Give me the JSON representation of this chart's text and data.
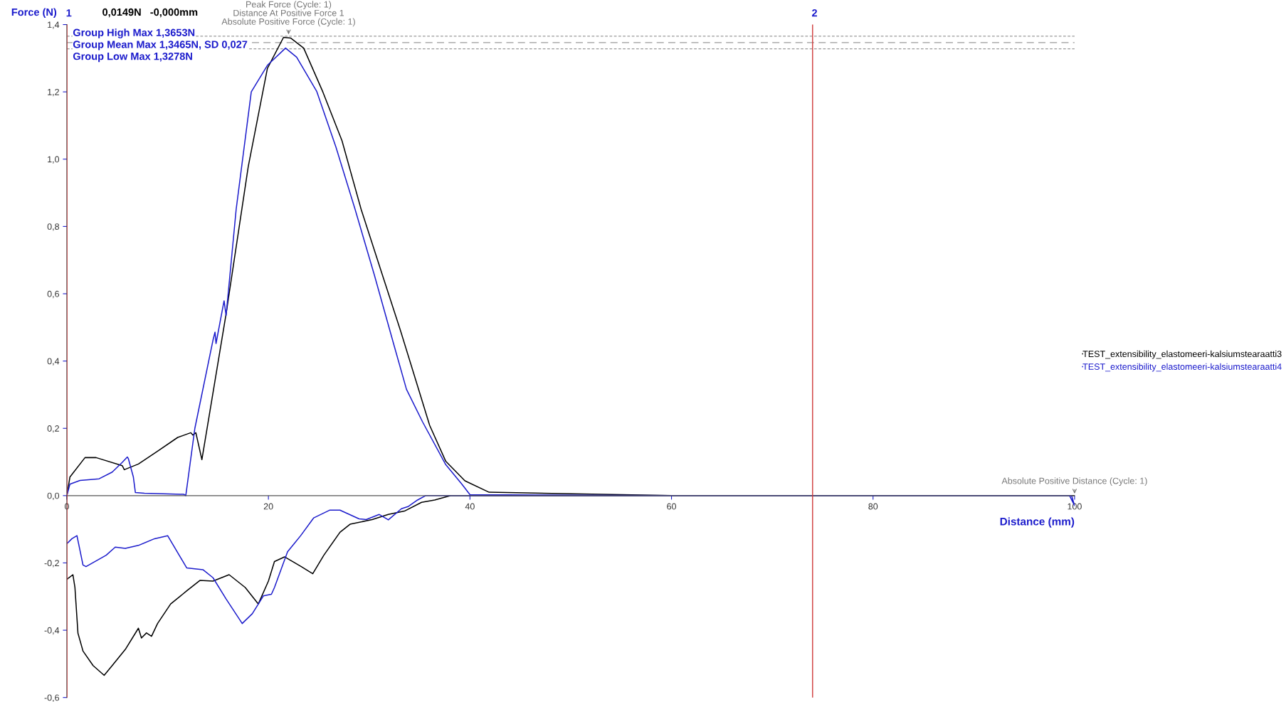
{
  "chart_data": {
    "type": "line",
    "xlabel": "Distance (mm)",
    "ylabel": "Force (N)",
    "xlim": [
      0,
      100
    ],
    "ylim": [
      -0.6,
      1.4
    ],
    "xticks": [
      0,
      20,
      40,
      60,
      80,
      100
    ],
    "yticks": [
      {
        "value": -0.6,
        "label": "-0,6"
      },
      {
        "value": -0.4,
        "label": "-0,4"
      },
      {
        "value": -0.2,
        "label": "-0,2"
      },
      {
        "value": 0,
        "label": "0,0"
      },
      {
        "value": 0.2,
        "label": "0,2"
      },
      {
        "value": 0.4,
        "label": "0,4"
      },
      {
        "value": 0.6,
        "label": "0,6"
      },
      {
        "value": 0.8,
        "label": "0,8"
      },
      {
        "value": 1.0,
        "label": "1,0"
      },
      {
        "value": 1.2,
        "label": "1,2"
      },
      {
        "value": 1.4,
        "label": "1,4"
      }
    ],
    "grid": false,
    "legend": "right",
    "marker": "none",
    "line_style": "solid",
    "series": [
      {
        "name": "TEST_extensibility_elastomeeri-kalsiumstearaatti3",
        "color": "#000000",
        "x": [
          0,
          0.3,
          1.8,
          2.9,
          5.5,
          5.7,
          7.1,
          9.0,
          11.0,
          12.3,
          12.5,
          12.8,
          13.4,
          15.8,
          18.0,
          19.9,
          21.5,
          22.2,
          23.5,
          25.4,
          27.3,
          29.2,
          31.2,
          33.1,
          34.4,
          36.0,
          37.6,
          39.5,
          41.9,
          60,
          80,
          100,
          80,
          60,
          38.1,
          36.5,
          35.2,
          33.5,
          31.9,
          30.3,
          28.1,
          27.1,
          25.5,
          24.4,
          23.2,
          21.6,
          20.6,
          20.0,
          19.0,
          17.7,
          16.1,
          14.5,
          13.2,
          11.9,
          10.3,
          9.0,
          8.4,
          7.9,
          7.4,
          7.1,
          5.8,
          4.5,
          3.7,
          2.6,
          1.6,
          1.1,
          0.8,
          0.6,
          0.2,
          0
        ],
        "values": [
          0,
          0.055,
          0.113,
          0.113,
          0.089,
          0.077,
          0.094,
          0.132,
          0.173,
          0.187,
          0.18,
          0.187,
          0.107,
          0.54,
          0.978,
          1.27,
          1.362,
          1.36,
          1.33,
          1.2,
          1.055,
          0.851,
          0.666,
          0.491,
          0.365,
          0.209,
          0.102,
          0.044,
          0.01,
          0,
          0,
          0,
          0,
          0,
          0,
          -0.013,
          -0.02,
          -0.046,
          -0.056,
          -0.071,
          -0.085,
          -0.109,
          -0.177,
          -0.232,
          -0.21,
          -0.182,
          -0.196,
          -0.254,
          -0.322,
          -0.273,
          -0.235,
          -0.254,
          -0.252,
          -0.283,
          -0.322,
          -0.38,
          -0.418,
          -0.408,
          -0.423,
          -0.394,
          -0.457,
          -0.505,
          -0.534,
          -0.505,
          -0.462,
          -0.409,
          -0.273,
          -0.235,
          -0.244,
          -0.249
        ]
      },
      {
        "name": "TEST_extensibility_elastomeeri-kalsiumstearaatti4",
        "color": "#1c1ccc",
        "x": [
          0,
          0.3,
          1.3,
          3.2,
          4.5,
          5.5,
          6.0,
          6.1,
          6.6,
          6.8,
          7.7,
          11.6,
          11.8,
          12.7,
          14.5,
          14.7,
          14.8,
          15.6,
          15.8,
          16.8,
          18.3,
          19.9,
          21.7,
          22.8,
          24.8,
          26.7,
          28.6,
          30.5,
          32.5,
          33.7,
          35.3,
          37.6,
          39.2,
          40.0,
          60,
          80,
          99.5,
          100,
          99.7,
          80,
          60,
          35.6,
          34.8,
          33.9,
          33.2,
          31.9,
          31.0,
          29.7,
          29.0,
          27.1,
          26.1,
          24.5,
          23.2,
          21.9,
          20.6,
          20.3,
          19.5,
          18.4,
          17.4,
          15.8,
          14.5,
          13.5,
          11.9,
          10.0,
          8.7,
          7.1,
          5.8,
          4.8,
          3.9,
          1.9,
          1.6,
          1.0,
          0.5,
          0
        ],
        "values": [
          0,
          0.034,
          0.045,
          0.05,
          0.07,
          0.099,
          0.115,
          0.11,
          0.055,
          0.009,
          0.007,
          0.004,
          0,
          0.2,
          0.462,
          0.486,
          0.452,
          0.579,
          0.535,
          0.851,
          1.2,
          1.279,
          1.33,
          1.303,
          1.201,
          1.036,
          0.851,
          0.657,
          0.443,
          0.316,
          0.219,
          0.092,
          0.034,
          0.003,
          0,
          0,
          0,
          -0.03,
          0,
          0,
          0,
          0,
          -0.013,
          -0.032,
          -0.039,
          -0.072,
          -0.056,
          -0.071,
          -0.069,
          -0.043,
          -0.043,
          -0.066,
          -0.119,
          -0.167,
          -0.273,
          -0.293,
          -0.298,
          -0.351,
          -0.38,
          -0.307,
          -0.244,
          -0.22,
          -0.215,
          -0.119,
          -0.128,
          -0.148,
          -0.157,
          -0.153,
          -0.177,
          -0.211,
          -0.206,
          -0.119,
          -0.128,
          -0.143
        ]
      }
    ],
    "ref_lines": [
      {
        "axis": "y",
        "value": 1.3653,
        "label": "Group High Max 1,3653N",
        "color": "#999999",
        "line_style": "dotted"
      },
      {
        "axis": "y",
        "value": 1.3465,
        "label": "Group Mean Max 1,3465N, SD 0,027",
        "color": "#999999",
        "line_style": "dashed"
      },
      {
        "axis": "y",
        "value": 1.3278,
        "label": "Group Low Max 1,3278N",
        "color": "#999999",
        "line_style": "dotted"
      },
      {
        "axis": "x",
        "value": 0,
        "color": "#d03a3a",
        "line_style": "solid"
      },
      {
        "axis": "x",
        "value": 74,
        "color": "#d03a3a",
        "line_style": "solid"
      }
    ],
    "annotations": [
      "0,0149N   -0,000mm",
      {
        "text": "1",
        "x": 0,
        "y": 1.4
      },
      {
        "text": "2",
        "x": 74,
        "y": 1.4
      },
      {
        "text": "Peak Force (Cycle: 1)\nDistance At Positive Force 1\nAbsolute Positive Force (Cycle: 1)",
        "x": 22,
        "y": 1.365
      },
      {
        "text": "Absolute Positive Distance (Cycle: 1)",
        "x": 100,
        "y": 0
      }
    ]
  }
}
